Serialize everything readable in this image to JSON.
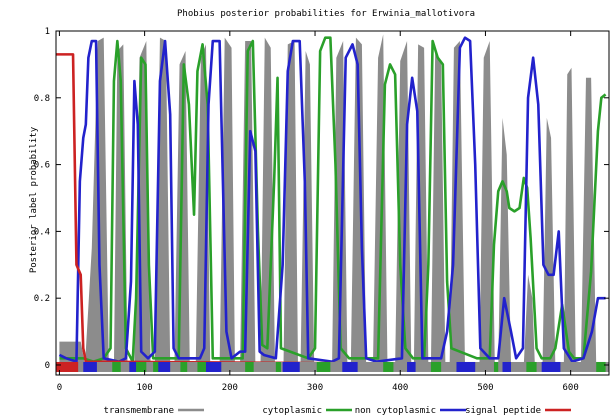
{
  "chart_data": {
    "type": "area",
    "title": "Phobius posterior probabilities for Erwinia_mallotivora",
    "xlabel": "",
    "ylabel": "Posterior label probability",
    "xlim": [
      -4,
      645
    ],
    "ylim": [
      -0.03,
      1.0
    ],
    "x_ticks": [
      0,
      100,
      200,
      300,
      400,
      500,
      600
    ],
    "y_ticks": [
      0,
      0.2,
      0.4,
      0.6,
      0.8,
      1
    ],
    "grid": false,
    "legend_position": "bottom",
    "colors": {
      "transmembrane": "#8c8c8c",
      "cytoplasmic": "#2aa02a",
      "non_cytoplasmic": "#2222cc",
      "signal_peptide": "#cc2222"
    },
    "series": [
      {
        "name": "transmembrane",
        "style": "filled",
        "points": [
          [
            0,
            0.07
          ],
          [
            25,
            0.07
          ],
          [
            30,
            0
          ],
          [
            38,
            0.35
          ],
          [
            45,
            0.97
          ],
          [
            52,
            0.98
          ],
          [
            58,
            0
          ],
          [
            64,
            0
          ],
          [
            68,
            0.94
          ],
          [
            75,
            0.96
          ],
          [
            80,
            0
          ],
          [
            88,
            0
          ],
          [
            94,
            0.92
          ],
          [
            102,
            0.97
          ],
          [
            107,
            0
          ],
          [
            112,
            0
          ],
          [
            118,
            0.98
          ],
          [
            125,
            0.97
          ],
          [
            130,
            0
          ],
          [
            135,
            0
          ],
          [
            141,
            0.9
          ],
          [
            148,
            0.94
          ],
          [
            153,
            0
          ],
          [
            160,
            0
          ],
          [
            166,
            0.92
          ],
          [
            172,
            0.96
          ],
          [
            177,
            0
          ],
          [
            188,
            0
          ],
          [
            194,
            0.98
          ],
          [
            202,
            0.95
          ],
          [
            206,
            0
          ],
          [
            212,
            0
          ],
          [
            218,
            0.97
          ],
          [
            225,
            0.97
          ],
          [
            230,
            0
          ],
          [
            236,
            0
          ],
          [
            241,
            0.98
          ],
          [
            248,
            0.95
          ],
          [
            253,
            0
          ],
          [
            263,
            0
          ],
          [
            268,
            0.96
          ],
          [
            276,
            0.97
          ],
          [
            280,
            0
          ],
          [
            283,
            0
          ],
          [
            289,
            0.94
          ],
          [
            294,
            0.9
          ],
          [
            299,
            0
          ],
          [
            320,
            0
          ],
          [
            325,
            0.92
          ],
          [
            333,
            0.97
          ],
          [
            338,
            0
          ],
          [
            342,
            0
          ],
          [
            348,
            0.98
          ],
          [
            355,
            0.96
          ],
          [
            360,
            0
          ],
          [
            368,
            0
          ],
          [
            374,
            0.92
          ],
          [
            380,
            0.99
          ],
          [
            385,
            0
          ],
          [
            394,
            0
          ],
          [
            400,
            0.91
          ],
          [
            408,
            0.97
          ],
          [
            413,
            0
          ],
          [
            416,
            0
          ],
          [
            421,
            0.96
          ],
          [
            428,
            0.95
          ],
          [
            433,
            0
          ],
          [
            436,
            0
          ],
          [
            441,
            0.94
          ],
          [
            448,
            0.91
          ],
          [
            453,
            0
          ],
          [
            458,
            0
          ],
          [
            463,
            0.95
          ],
          [
            470,
            0.97
          ],
          [
            476,
            0
          ],
          [
            493,
            0
          ],
          [
            498,
            0.92
          ],
          [
            505,
            0.97
          ],
          [
            511,
            0
          ],
          [
            515,
            0
          ],
          [
            520,
            0.74
          ],
          [
            525,
            0.63
          ],
          [
            530,
            0
          ],
          [
            545,
            0
          ],
          [
            550,
            0.27
          ],
          [
            555,
            0.2
          ],
          [
            558,
            0
          ],
          [
            567,
            0
          ],
          [
            572,
            0.74
          ],
          [
            577,
            0.68
          ],
          [
            582,
            0
          ],
          [
            592,
            0
          ],
          [
            596,
            0.87
          ],
          [
            601,
            0.89
          ],
          [
            606,
            0
          ],
          [
            612,
            0
          ],
          [
            618,
            0.86
          ],
          [
            624,
            0.86
          ],
          [
            630,
            0
          ],
          [
            641,
            0
          ]
        ]
      },
      {
        "name": "cytoplasmic",
        "style": "line",
        "points": [
          [
            0,
            0.02
          ],
          [
            28,
            0.02
          ],
          [
            40,
            0.01
          ],
          [
            52,
            0.02
          ],
          [
            60,
            0.05
          ],
          [
            64,
            0.85
          ],
          [
            68,
            0.97
          ],
          [
            72,
            0.85
          ],
          [
            78,
            0.05
          ],
          [
            86,
            0.01
          ],
          [
            90,
            0.2
          ],
          [
            96,
            0.92
          ],
          [
            101,
            0.9
          ],
          [
            105,
            0.3
          ],
          [
            110,
            0.02
          ],
          [
            140,
            0.02
          ],
          [
            146,
            0.9
          ],
          [
            152,
            0.78
          ],
          [
            158,
            0.45
          ],
          [
            162,
            0.88
          ],
          [
            168,
            0.96
          ],
          [
            174,
            0.78
          ],
          [
            180,
            0.02
          ],
          [
            215,
            0.02
          ],
          [
            221,
            0.94
          ],
          [
            227,
            0.97
          ],
          [
            233,
            0.4
          ],
          [
            238,
            0.06
          ],
          [
            244,
            0.05
          ],
          [
            252,
            0.55
          ],
          [
            256,
            0.86
          ],
          [
            260,
            0.05
          ],
          [
            292,
            0.02
          ],
          [
            300,
            0.05
          ],
          [
            306,
            0.94
          ],
          [
            312,
            0.98
          ],
          [
            318,
            0.98
          ],
          [
            324,
            0.6
          ],
          [
            330,
            0.05
          ],
          [
            340,
            0.02
          ],
          [
            360,
            0.02
          ],
          [
            374,
            0.02
          ],
          [
            382,
            0.84
          ],
          [
            388,
            0.9
          ],
          [
            394,
            0.87
          ],
          [
            400,
            0.3
          ],
          [
            406,
            0.05
          ],
          [
            415,
            0.02
          ],
          [
            428,
            0.02
          ],
          [
            433,
            0.3
          ],
          [
            438,
            0.97
          ],
          [
            444,
            0.92
          ],
          [
            450,
            0.9
          ],
          [
            455,
            0.25
          ],
          [
            460,
            0.05
          ],
          [
            490,
            0.02
          ],
          [
            505,
            0.02
          ],
          [
            510,
            0.36
          ],
          [
            515,
            0.52
          ],
          [
            520,
            0.55
          ],
          [
            525,
            0.52
          ],
          [
            528,
            0.47
          ],
          [
            534,
            0.46
          ],
          [
            540,
            0.47
          ],
          [
            545,
            0.56
          ],
          [
            549,
            0.53
          ],
          [
            553,
            0.38
          ],
          [
            560,
            0.05
          ],
          [
            566,
            0.02
          ],
          [
            576,
            0.02
          ],
          [
            582,
            0.05
          ],
          [
            590,
            0.18
          ],
          [
            598,
            0.04
          ],
          [
            604,
            0.02
          ],
          [
            615,
            0.02
          ],
          [
            624,
            0.28
          ],
          [
            632,
            0.7
          ],
          [
            636,
            0.8
          ],
          [
            641,
            0.81
          ]
        ]
      },
      {
        "name": "non cytoplasmic",
        "style": "line",
        "points": [
          [
            0,
            0.03
          ],
          [
            8,
            0.02
          ],
          [
            20,
            0.01
          ],
          [
            24,
            0.55
          ],
          [
            28,
            0.68
          ],
          [
            31,
            0.72
          ],
          [
            34,
            0.92
          ],
          [
            38,
            0.97
          ],
          [
            43,
            0.97
          ],
          [
            47,
            0.3
          ],
          [
            52,
            0.02
          ],
          [
            70,
            0.01
          ],
          [
            78,
            0.02
          ],
          [
            84,
            0.25
          ],
          [
            88,
            0.85
          ],
          [
            92,
            0.72
          ],
          [
            96,
            0.04
          ],
          [
            104,
            0.02
          ],
          [
            112,
            0.04
          ],
          [
            118,
            0.85
          ],
          [
            124,
            0.97
          ],
          [
            130,
            0.75
          ],
          [
            134,
            0.05
          ],
          [
            140,
            0.02
          ],
          [
            165,
            0.02
          ],
          [
            170,
            0.05
          ],
          [
            175,
            0.78
          ],
          [
            180,
            0.97
          ],
          [
            188,
            0.97
          ],
          [
            196,
            0.1
          ],
          [
            202,
            0.02
          ],
          [
            212,
            0.04
          ],
          [
            218,
            0.04
          ],
          [
            224,
            0.7
          ],
          [
            230,
            0.64
          ],
          [
            235,
            0.04
          ],
          [
            240,
            0.03
          ],
          [
            254,
            0.02
          ],
          [
            262,
            0.3
          ],
          [
            268,
            0.88
          ],
          [
            274,
            0.97
          ],
          [
            282,
            0.97
          ],
          [
            288,
            0.55
          ],
          [
            292,
            0.02
          ],
          [
            320,
            0.01
          ],
          [
            328,
            0.02
          ],
          [
            336,
            0.92
          ],
          [
            344,
            0.96
          ],
          [
            350,
            0.9
          ],
          [
            355,
            0.35
          ],
          [
            360,
            0.02
          ],
          [
            372,
            0.01
          ],
          [
            402,
            0.02
          ],
          [
            408,
            0.72
          ],
          [
            414,
            0.86
          ],
          [
            420,
            0.76
          ],
          [
            426,
            0.02
          ],
          [
            448,
            0.02
          ],
          [
            455,
            0.1
          ],
          [
            462,
            0.3
          ],
          [
            470,
            0.95
          ],
          [
            476,
            0.98
          ],
          [
            482,
            0.97
          ],
          [
            488,
            0.6
          ],
          [
            494,
            0.05
          ],
          [
            505,
            0.02
          ],
          [
            515,
            0.02
          ],
          [
            522,
            0.2
          ],
          [
            530,
            0.1
          ],
          [
            536,
            0.02
          ],
          [
            544,
            0.05
          ],
          [
            550,
            0.8
          ],
          [
            556,
            0.92
          ],
          [
            562,
            0.78
          ],
          [
            568,
            0.3
          ],
          [
            574,
            0.27
          ],
          [
            580,
            0.27
          ],
          [
            586,
            0.4
          ],
          [
            592,
            0.05
          ],
          [
            602,
            0.01
          ],
          [
            615,
            0.02
          ],
          [
            625,
            0.1
          ],
          [
            632,
            0.2
          ],
          [
            641,
            0.2
          ]
        ]
      },
      {
        "name": "signal peptide",
        "style": "line",
        "points": [
          [
            -4,
            0.93
          ],
          [
            16,
            0.93
          ],
          [
            20,
            0.3
          ],
          [
            25,
            0.27
          ],
          [
            28,
            0.05
          ],
          [
            31,
            0.01
          ],
          [
            641,
            0.0
          ]
        ]
      }
    ],
    "sequence_bar": {
      "segments": [
        {
          "label": "cytoplasmic",
          "ranges": [
            [
              62,
              72
            ],
            [
              90,
              102
            ],
            [
              110,
              117
            ],
            [
              142,
              150
            ],
            [
              162,
              172
            ],
            [
              218,
              228
            ],
            [
              254,
              260
            ],
            [
              302,
              318
            ],
            [
              380,
              392
            ],
            [
              436,
              448
            ],
            [
              510,
              515
            ],
            [
              548,
              560
            ],
            [
              630,
              641
            ]
          ]
        },
        {
          "label": "non cytoplasmic",
          "ranges": [
            [
              28,
              44
            ],
            [
              82,
              90
            ],
            [
              116,
              130
            ],
            [
              172,
              190
            ],
            [
              262,
              282
            ],
            [
              332,
              350
            ],
            [
              408,
              418
            ],
            [
              466,
              488
            ],
            [
              520,
              530
            ],
            [
              566,
              588
            ]
          ]
        },
        {
          "label": "signal peptide",
          "ranges": [
            [
              -4,
              22
            ]
          ]
        }
      ]
    }
  }
}
